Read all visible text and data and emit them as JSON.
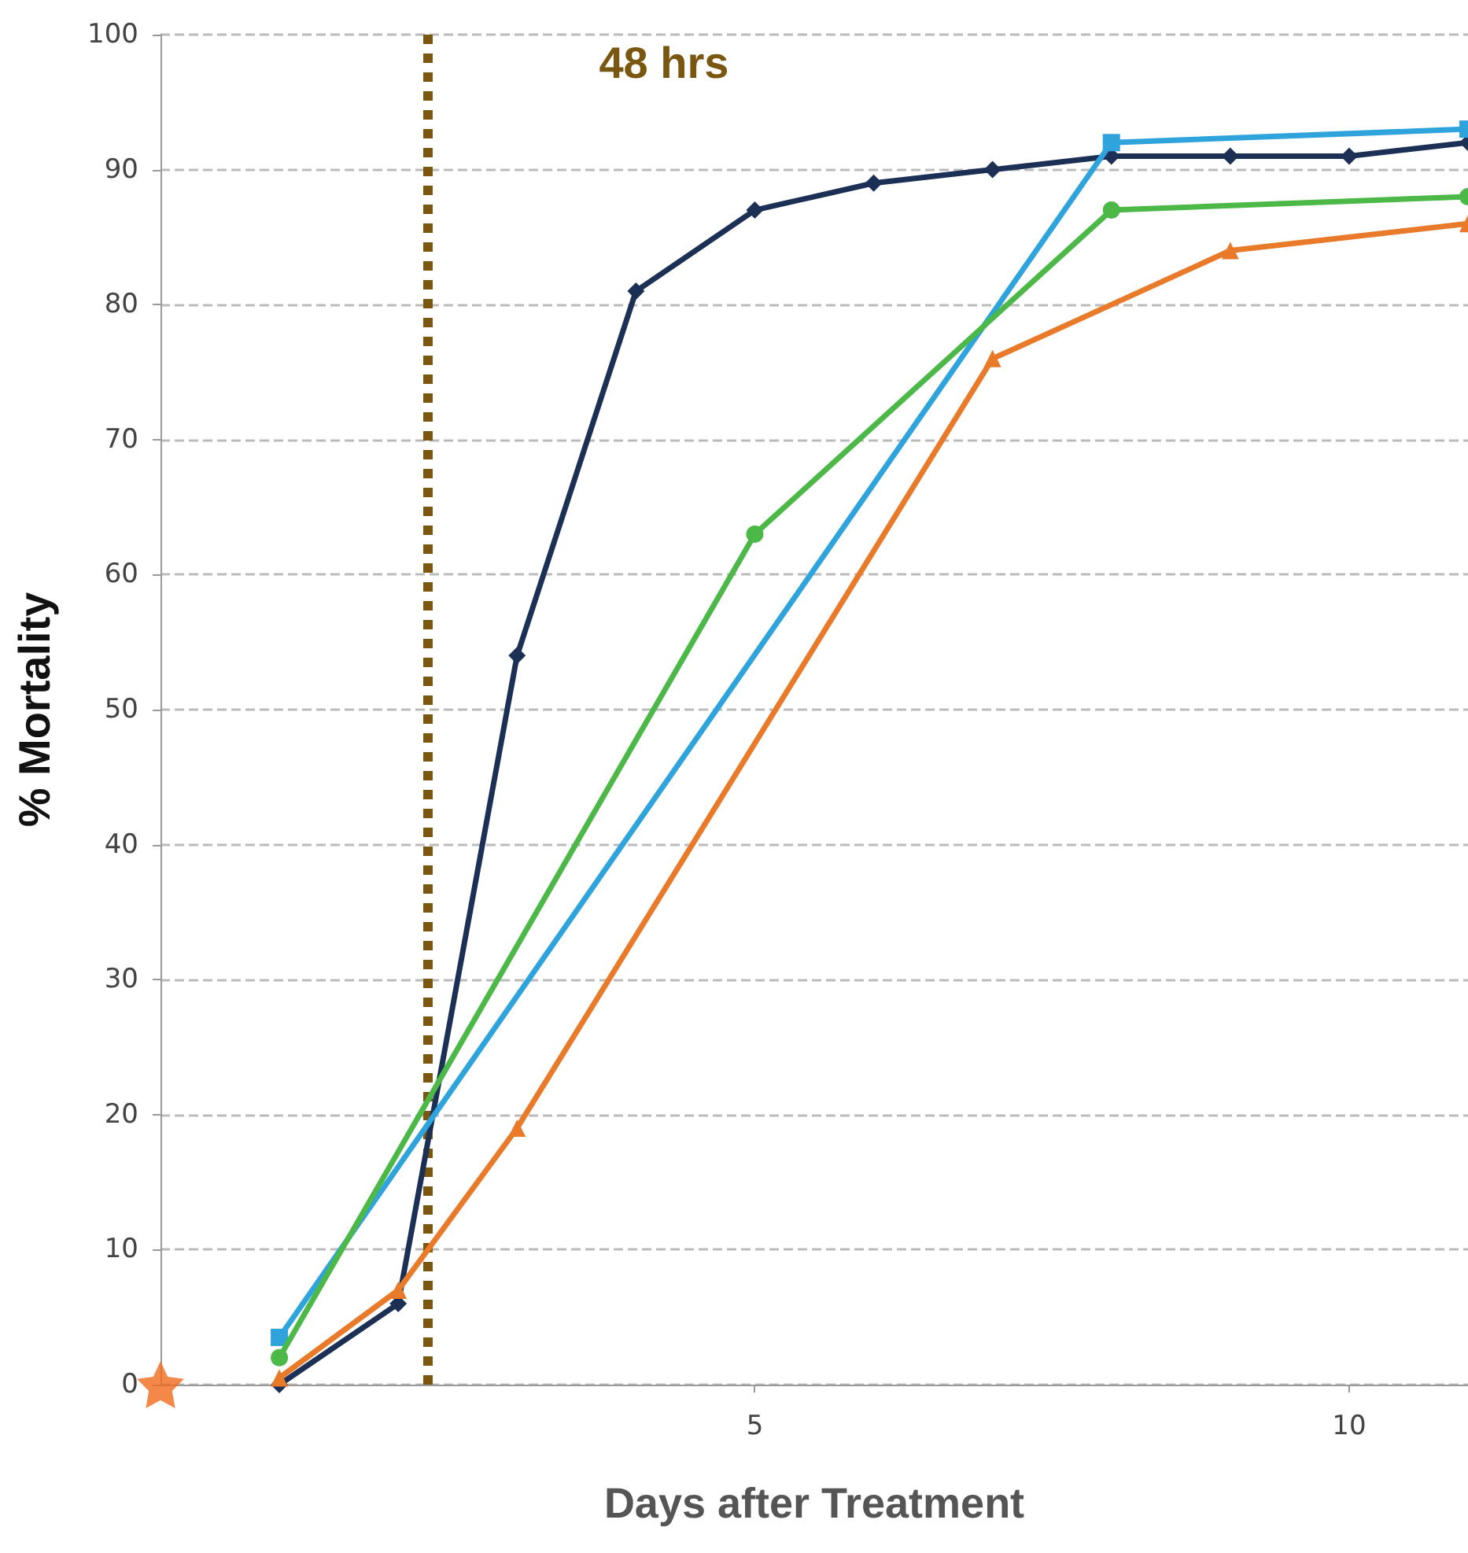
{
  "chart_data": {
    "type": "line",
    "xlabel": "Days after Treatment",
    "ylabel": "% Mortality",
    "xlim": [
      0,
      11
    ],
    "xticks": [
      5,
      10
    ],
    "ylim": [
      0,
      100
    ],
    "yticks": [
      0,
      10,
      20,
      30,
      40,
      50,
      60,
      70,
      80,
      90,
      100
    ],
    "grid": "y",
    "line_style": "solid",
    "series": [
      {
        "color": "#e87a2a",
        "marker": "triangle",
        "x": [
          1,
          2,
          3,
          7,
          9,
          11
        ],
        "values": [
          0.5,
          7,
          19,
          76,
          84,
          86
        ]
      },
      {
        "color": "#4cb848",
        "marker": "circle",
        "x": [
          1,
          5,
          8,
          11
        ],
        "values": [
          2,
          63,
          87,
          88
        ]
      },
      {
        "color": "#2fa3dc",
        "marker": "square",
        "x": [
          1,
          8,
          11
        ],
        "values": [
          3.5,
          92,
          93
        ]
      },
      {
        "color": "#1c2f55",
        "marker": "diamond",
        "x": [
          1,
          2,
          3,
          4,
          5,
          6,
          7,
          8,
          9,
          10,
          11
        ],
        "values": [
          0,
          6,
          54,
          81,
          87,
          89,
          90,
          91,
          91,
          91,
          92
        ]
      },
      {
        "type": "scatter",
        "color": "#f06a1c",
        "marker": "star",
        "x": [
          0
        ],
        "values": [
          0
        ]
      }
    ],
    "ref_lines": [
      {
        "axis": "x",
        "value": 2.25,
        "label": "48 hrs",
        "color": "#7a5710",
        "line_style": "dotted"
      }
    ]
  }
}
